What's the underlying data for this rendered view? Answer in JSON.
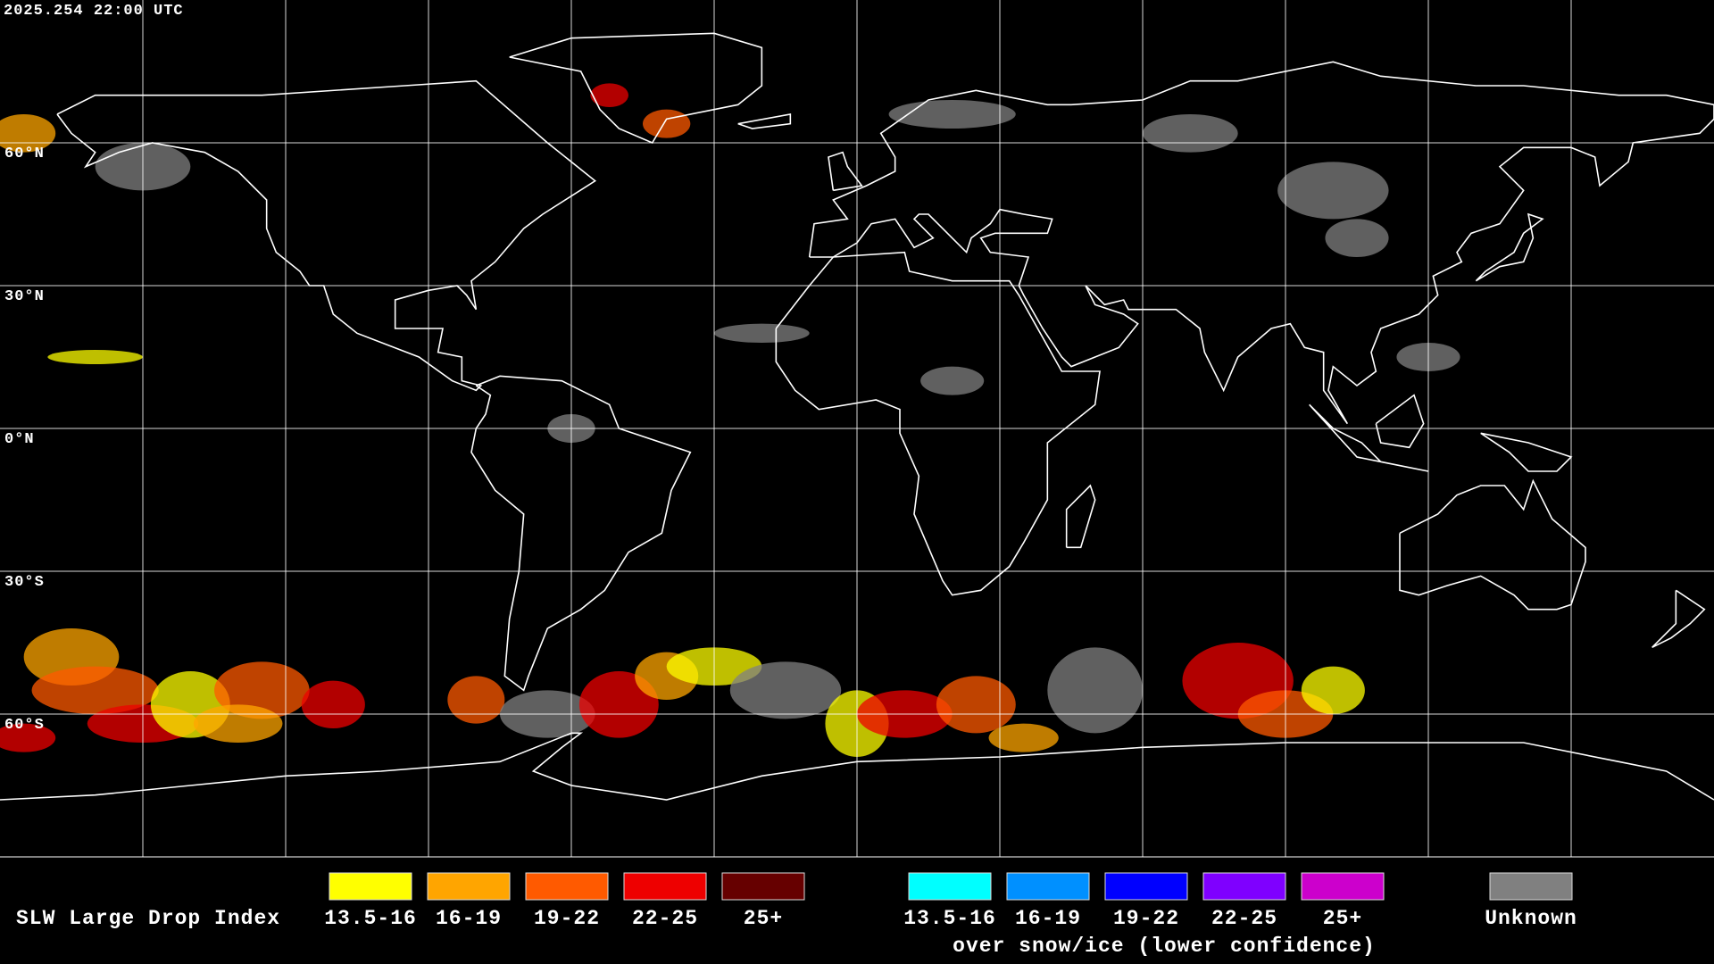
{
  "header": {
    "timestamp": "2025.254 22:00 UTC"
  },
  "map": {
    "lat_labels": [
      "60°N",
      "30°N",
      "0°N",
      "30°S",
      "60°S"
    ]
  },
  "legend": {
    "title": "SLW Large Drop Index",
    "groups": [
      {
        "items": [
          {
            "label": "13.5-16",
            "color": "#ffff00"
          },
          {
            "label": "16-19",
            "color": "#ffa500"
          },
          {
            "label": "19-22",
            "color": "#ff5a00"
          },
          {
            "label": "22-25",
            "color": "#ee0000"
          },
          {
            "label": "25+",
            "color": "#660000"
          }
        ]
      },
      {
        "items": [
          {
            "label": "13.5-16",
            "color": "#00ffff"
          },
          {
            "label": "16-19",
            "color": "#0090ff"
          },
          {
            "label": "19-22",
            "color": "#0000ff"
          },
          {
            "label": "22-25",
            "color": "#7f00ff"
          },
          {
            "label": "25+",
            "color": "#cc00cc"
          }
        ],
        "note": "over snow/ice (lower confidence)"
      },
      {
        "items": [
          {
            "label": "Unknown",
            "color": "#808080"
          }
        ]
      }
    ]
  }
}
